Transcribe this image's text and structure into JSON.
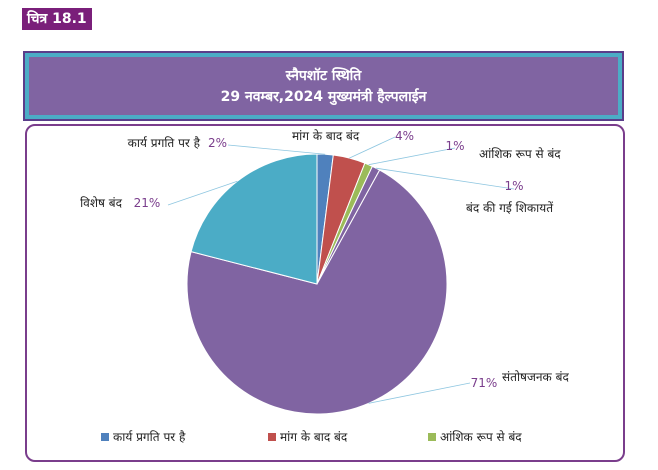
{
  "figure_label": "चित्र 18.1",
  "chart_data": {
    "type": "pie",
    "title": "स्नैपशॉट स्थिति",
    "subtitle": "29 नवम्बर,2024 मुख्यमंत्री हैल्पलाईन",
    "slices": [
      {
        "name": "कार्य प्रगति पर है",
        "value": 2,
        "label": "2%",
        "color": "#4f81bd"
      },
      {
        "name": "मांग के बाद बंद",
        "value": 4,
        "label": "4%",
        "color": "#c0504d"
      },
      {
        "name": "आंशिक रूप से बंद",
        "value": 1,
        "label": "1%",
        "color": "#9bbb59"
      },
      {
        "name": "बंद की गई शिकायतें",
        "value": 1,
        "label": "1%",
        "color": "#8064a2"
      },
      {
        "name": "संतोषजनक बंद",
        "value": 71,
        "label": "71%",
        "color": "#8064a2"
      },
      {
        "name": "विशेष बंद",
        "value": 21,
        "label": "21%",
        "color": "#4bacc6"
      }
    ],
    "legend": [
      "कार्य प्रगति पर है",
      "मांग के बाद बंद",
      "आंशिक रूप से बंद"
    ],
    "legend_colors": [
      "#4f81bd",
      "#c0504d",
      "#9bbb59"
    ],
    "legend_position": "bottom"
  }
}
